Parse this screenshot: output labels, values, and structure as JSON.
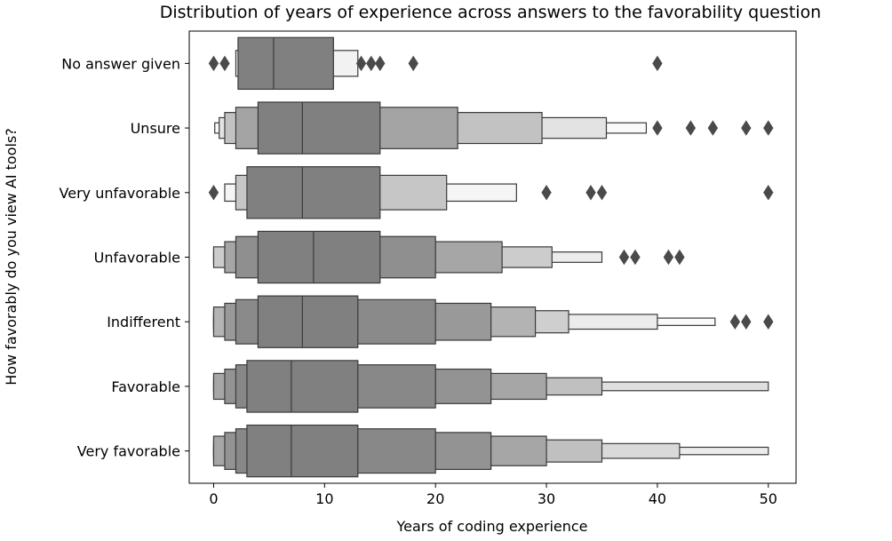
{
  "chart_data": {
    "type": "boxen",
    "title": "Distribution of years of experience across answers to the favorability question",
    "xlabel": "Years of coding experience",
    "ylabel": "How favorably do you view AI tools?",
    "xlim": [
      -2.2,
      52.5
    ],
    "xticks": [
      0,
      10,
      20,
      30,
      40,
      50
    ],
    "grid": false,
    "orientation": "horizontal",
    "colors": {
      "median_box": "#808080",
      "outline": "#3a3a3a",
      "outlier": "#4a4a4a"
    },
    "categories": [
      {
        "label": "No answer given",
        "median": 5.4,
        "boxes": [
          {
            "lo": 2.2,
            "hi": 10.8,
            "shade": 0.0
          },
          {
            "lo": 2.0,
            "hi": 13.0,
            "shade": 0.9
          }
        ],
        "outliers": [
          0,
          1,
          13.3,
          14.2,
          15,
          18,
          40
        ]
      },
      {
        "label": "Unsure",
        "median": 8.0,
        "boxes": [
          {
            "lo": 4.0,
            "hi": 15.0,
            "shade": 0.0
          },
          {
            "lo": 2.0,
            "hi": 22.0,
            "shade": 0.28
          },
          {
            "lo": 1.0,
            "hi": 29.6,
            "shade": 0.52
          },
          {
            "lo": 0.5,
            "hi": 35.4,
            "shade": 0.78
          },
          {
            "lo": 0.1,
            "hi": 39.0,
            "shade": 0.96
          }
        ],
        "outliers": [
          40,
          43,
          45,
          48,
          50
        ]
      },
      {
        "label": "Very unfavorable",
        "median": 8.0,
        "boxes": [
          {
            "lo": 3.0,
            "hi": 15.0,
            "shade": 0.0
          },
          {
            "lo": 2.0,
            "hi": 21.0,
            "shade": 0.55
          },
          {
            "lo": 1.0,
            "hi": 27.3,
            "shade": 0.92
          }
        ],
        "outliers": [
          0,
          30,
          34,
          35,
          50
        ]
      },
      {
        "label": "Unfavorable",
        "median": 9.0,
        "boxes": [
          {
            "lo": 4.0,
            "hi": 15.0,
            "shade": 0.0
          },
          {
            "lo": 2.0,
            "hi": 20.0,
            "shade": 0.12
          },
          {
            "lo": 1.0,
            "hi": 26.0,
            "shade": 0.3
          },
          {
            "lo": 0.0,
            "hi": 30.5,
            "shade": 0.6
          },
          {
            "lo": 0.0,
            "hi": 35.0,
            "shade": 0.85
          }
        ],
        "outliers": [
          37,
          38,
          41,
          42
        ]
      },
      {
        "label": "Indifferent",
        "median": 8.0,
        "boxes": [
          {
            "lo": 4.0,
            "hi": 13.0,
            "shade": 0.0
          },
          {
            "lo": 2.0,
            "hi": 20.0,
            "shade": 0.08
          },
          {
            "lo": 1.0,
            "hi": 25.0,
            "shade": 0.2
          },
          {
            "lo": 0.0,
            "hi": 29.0,
            "shade": 0.4
          },
          {
            "lo": 0.0,
            "hi": 32.0,
            "shade": 0.62
          },
          {
            "lo": 0.0,
            "hi": 40.0,
            "shade": 0.85
          },
          {
            "lo": 0.0,
            "hi": 45.2,
            "shade": 0.96
          }
        ],
        "outliers": [
          47,
          48,
          50
        ]
      },
      {
        "label": "Favorable",
        "median": 7.0,
        "boxes": [
          {
            "lo": 3.0,
            "hi": 13.0,
            "shade": 0.0
          },
          {
            "lo": 2.0,
            "hi": 20.0,
            "shade": 0.06
          },
          {
            "lo": 1.0,
            "hi": 25.0,
            "shade": 0.15
          },
          {
            "lo": 0.0,
            "hi": 30.0,
            "shade": 0.3
          },
          {
            "lo": 0.0,
            "hi": 35.0,
            "shade": 0.5
          },
          {
            "lo": 0.0,
            "hi": 50.0,
            "shade": 0.75
          }
        ],
        "outliers": []
      },
      {
        "label": "Very favorable",
        "median": 7.0,
        "boxes": [
          {
            "lo": 3.0,
            "hi": 13.0,
            "shade": 0.0
          },
          {
            "lo": 2.0,
            "hi": 20.0,
            "shade": 0.06
          },
          {
            "lo": 1.0,
            "hi": 25.0,
            "shade": 0.15
          },
          {
            "lo": 0.0,
            "hi": 30.0,
            "shade": 0.3
          },
          {
            "lo": 0.0,
            "hi": 35.0,
            "shade": 0.5
          },
          {
            "lo": 0.0,
            "hi": 42.0,
            "shade": 0.7
          },
          {
            "lo": 0.0,
            "hi": 50.0,
            "shade": 0.85
          }
        ],
        "outliers": []
      }
    ]
  }
}
